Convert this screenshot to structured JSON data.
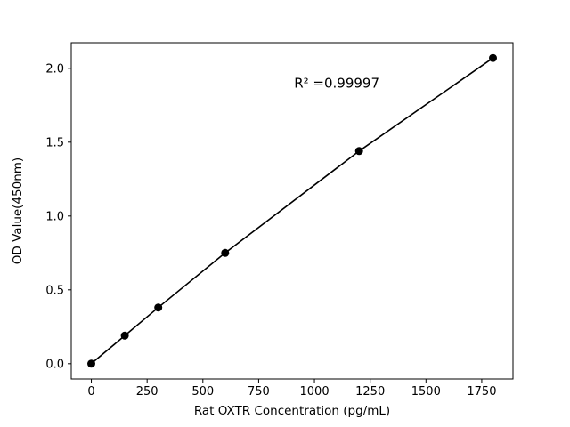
{
  "chart_data": {
    "type": "line",
    "title": "",
    "xlabel": "Rat OXTR Concentration (pg/mL)",
    "ylabel": "OD Value(450nm)",
    "x": [
      0,
      150,
      300,
      600,
      1200,
      1800
    ],
    "y": [
      0.0,
      0.19,
      0.38,
      0.75,
      1.44,
      2.07
    ],
    "xlim": [
      -90,
      1890
    ],
    "ylim": [
      -0.1035,
      2.1735
    ],
    "xticks": [
      0,
      250,
      500,
      750,
      1000,
      1250,
      1500,
      1750
    ],
    "xtick_labels": [
      "0",
      "250",
      "500",
      "750",
      "1000",
      "1250",
      "1500",
      "1750"
    ],
    "yticks": [
      0.0,
      0.5,
      1.0,
      1.5,
      2.0
    ],
    "ytick_labels": [
      "0.0",
      "0.5",
      "1.0",
      "1.5",
      "2.0"
    ],
    "grid": false,
    "legend": null,
    "line_color": "#000000",
    "marker": "circle",
    "marker_color": "#000000",
    "background_color": "#ffffff",
    "annotation": {
      "text": "R² =0.99997",
      "x": 1100,
      "y": 1.87
    }
  }
}
